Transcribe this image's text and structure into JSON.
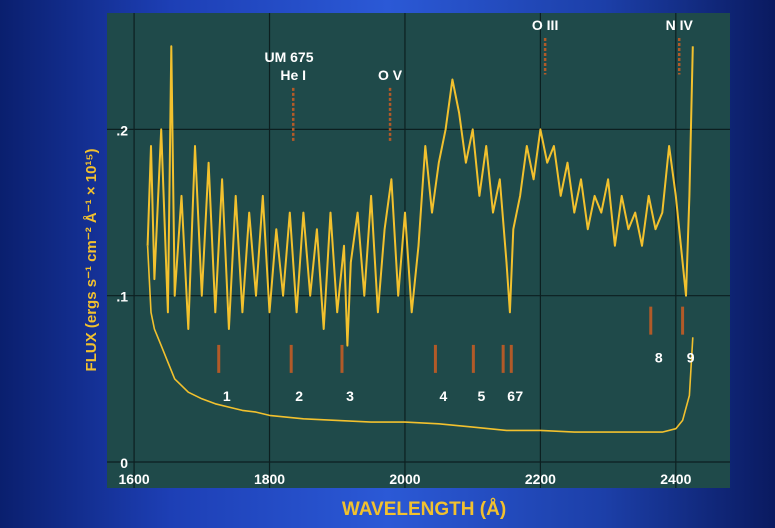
{
  "chart_data": {
    "type": "line",
    "title": "",
    "xlabel": "WAVELENGTH (Å)",
    "ylabel": "FLUX (ergs s⁻¹ cm⁻² Å⁻¹ × 10¹⁵)",
    "xlim": [
      1560,
      2480
    ],
    "ylim": [
      0,
      0.27
    ],
    "x_ticks": [
      1600,
      1800,
      2000,
      2200,
      2400
    ],
    "y_ticks": [
      0,
      0.1,
      0.2
    ],
    "y_tick_labels": [
      "0",
      ".1",
      ".2"
    ],
    "grid": true,
    "colors": {
      "panel": "#1f4a4a",
      "line": "#f2c12e",
      "marker": "#b25a28",
      "grid": "#0c1f20",
      "text": "#ffffff"
    },
    "object_label": "UM 675",
    "series": [
      {
        "values_kind": "spectrum",
        "x": [
          1620,
          1625,
          1630,
          1640,
          1650,
          1655,
          1660,
          1670,
          1680,
          1690,
          1700,
          1710,
          1720,
          1730,
          1740,
          1750,
          1760,
          1770,
          1780,
          1790,
          1800,
          1810,
          1820,
          1830,
          1840,
          1850,
          1860,
          1870,
          1880,
          1890,
          1900,
          1910,
          1915,
          1920,
          1930,
          1940,
          1950,
          1960,
          1970,
          1980,
          1990,
          2000,
          2010,
          2020,
          2030,
          2040,
          2050,
          2060,
          2070,
          2080,
          2090,
          2100,
          2110,
          2120,
          2130,
          2140,
          2150,
          2155,
          2160,
          2170,
          2180,
          2190,
          2200,
          2210,
          2220,
          2230,
          2240,
          2250,
          2260,
          2270,
          2280,
          2290,
          2300,
          2310,
          2320,
          2330,
          2340,
          2350,
          2360,
          2370,
          2380,
          2390,
          2400,
          2410,
          2415,
          2420,
          2425
        ],
        "y": [
          0.13,
          0.19,
          0.11,
          0.2,
          0.09,
          0.25,
          0.1,
          0.16,
          0.08,
          0.19,
          0.1,
          0.18,
          0.09,
          0.17,
          0.08,
          0.16,
          0.09,
          0.15,
          0.1,
          0.16,
          0.09,
          0.14,
          0.1,
          0.15,
          0.09,
          0.15,
          0.1,
          0.14,
          0.08,
          0.15,
          0.09,
          0.13,
          0.07,
          0.12,
          0.15,
          0.1,
          0.16,
          0.09,
          0.14,
          0.17,
          0.1,
          0.15,
          0.09,
          0.13,
          0.19,
          0.15,
          0.18,
          0.2,
          0.23,
          0.21,
          0.18,
          0.2,
          0.16,
          0.19,
          0.15,
          0.17,
          0.12,
          0.09,
          0.14,
          0.16,
          0.19,
          0.17,
          0.2,
          0.18,
          0.19,
          0.16,
          0.18,
          0.15,
          0.17,
          0.14,
          0.16,
          0.15,
          0.17,
          0.13,
          0.16,
          0.14,
          0.15,
          0.13,
          0.16,
          0.14,
          0.15,
          0.19,
          0.16,
          0.12,
          0.1,
          0.16,
          0.25
        ]
      },
      {
        "values_kind": "continuum",
        "x": [
          1620,
          1625,
          1630,
          1640,
          1650,
          1660,
          1680,
          1700,
          1720,
          1740,
          1760,
          1780,
          1800,
          1850,
          1900,
          1950,
          2000,
          2050,
          2100,
          2150,
          2200,
          2250,
          2300,
          2350,
          2380,
          2400,
          2410,
          2420,
          2425
        ],
        "y": [
          0.13,
          0.09,
          0.08,
          0.07,
          0.06,
          0.05,
          0.042,
          0.038,
          0.035,
          0.033,
          0.031,
          0.03,
          0.028,
          0.026,
          0.025,
          0.024,
          0.024,
          0.023,
          0.021,
          0.019,
          0.019,
          0.018,
          0.018,
          0.018,
          0.018,
          0.02,
          0.025,
          0.04,
          0.075
        ]
      }
    ],
    "line_labels": [
      {
        "text": "He I",
        "x": 1835,
        "y_from": 0.193,
        "y_to": 0.225
      },
      {
        "text": "O V",
        "x": 1978,
        "y_from": 0.193,
        "y_to": 0.225
      },
      {
        "text": "O III",
        "x": 2207,
        "y_from": 0.233,
        "y_to": 0.255
      },
      {
        "text": "N IV",
        "x": 2405,
        "y_from": 0.233,
        "y_to": 0.255
      }
    ],
    "markers": [
      {
        "label": "1",
        "x": 1725,
        "y": 0.062
      },
      {
        "label": "2",
        "x": 1832,
        "y": 0.062
      },
      {
        "label": "3",
        "x": 1907,
        "y": 0.062
      },
      {
        "label": "4",
        "x": 2045,
        "y": 0.062
      },
      {
        "label": "5",
        "x": 2101,
        "y": 0.062
      },
      {
        "label": "6",
        "x": 2145,
        "y": 0.062
      },
      {
        "label": "7",
        "x": 2157,
        "y": 0.062
      },
      {
        "label": "8",
        "x": 2363,
        "y": 0.085
      },
      {
        "label": "9",
        "x": 2410,
        "y": 0.085
      }
    ]
  }
}
